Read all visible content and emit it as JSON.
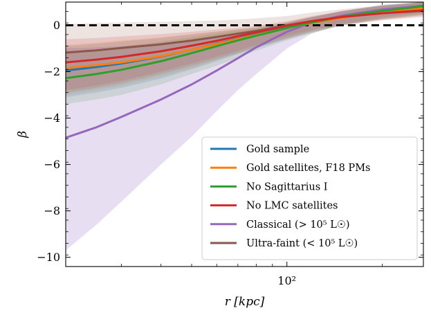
{
  "chart_data": {
    "type": "line",
    "xlabel": "r [kpc]",
    "ylabel": "β",
    "x_scale": "log",
    "xlim": [
      20,
      270
    ],
    "ylim": [
      -10.4,
      1.0
    ],
    "x_major_ticks": [
      {
        "value": 100,
        "label": "10²"
      }
    ],
    "x_minor_ticks": [
      20,
      30,
      40,
      50,
      60,
      70,
      80,
      90,
      200
    ],
    "y_ticks": [
      0,
      -2,
      -4,
      -6,
      -8,
      -10
    ],
    "y_tick_labels": [
      "0",
      "−2",
      "−4",
      "−6",
      "−8",
      "−10"
    ],
    "y_minor_step": 0.5,
    "reference_line": {
      "y": 0,
      "style": "dashed",
      "color": "#000000"
    },
    "legend_position": "lower-right",
    "x": [
      20,
      25,
      30,
      40,
      50,
      60,
      70,
      80,
      100,
      120,
      150,
      200,
      270
    ],
    "series": [
      {
        "name": "Gold sample",
        "color": "#1f77b4",
        "values": [
          -1.95,
          -1.8,
          -1.65,
          -1.35,
          -1.05,
          -0.8,
          -0.58,
          -0.4,
          -0.1,
          0.12,
          0.35,
          0.58,
          0.78
        ],
        "lower": [
          -3.1,
          -2.9,
          -2.7,
          -2.3,
          -1.9,
          -1.55,
          -1.25,
          -1.0,
          -0.6,
          -0.3,
          0.0,
          0.25,
          0.45
        ],
        "upper": [
          -0.9,
          -0.8,
          -0.7,
          -0.55,
          -0.4,
          -0.28,
          -0.18,
          -0.1,
          0.12,
          0.35,
          0.6,
          0.85,
          1.0
        ]
      },
      {
        "name": "Gold satellites, F18 PMs",
        "color": "#ff7f0e",
        "values": [
          -1.85,
          -1.72,
          -1.6,
          -1.33,
          -1.05,
          -0.82,
          -0.6,
          -0.42,
          -0.12,
          0.1,
          0.33,
          0.56,
          0.75
        ],
        "lower": [
          -3.0,
          -2.8,
          -2.6,
          -2.2,
          -1.85,
          -1.5,
          -1.2,
          -0.95,
          -0.58,
          -0.3,
          0.0,
          0.25,
          0.45
        ],
        "upper": [
          -0.85,
          -0.75,
          -0.65,
          -0.52,
          -0.38,
          -0.26,
          -0.16,
          -0.08,
          0.14,
          0.36,
          0.6,
          0.85,
          1.0
        ]
      },
      {
        "name": "No Sagittarius I",
        "color": "#2ca02c",
        "values": [
          -2.28,
          -2.1,
          -1.92,
          -1.55,
          -1.2,
          -0.9,
          -0.65,
          -0.45,
          -0.12,
          0.12,
          0.38,
          0.62,
          0.82
        ],
        "lower": [
          -3.4,
          -3.2,
          -3.0,
          -2.55,
          -2.1,
          -1.75,
          -1.4,
          -1.1,
          -0.65,
          -0.35,
          0.0,
          0.3,
          0.5
        ],
        "upper": [
          -1.2,
          -1.05,
          -0.92,
          -0.7,
          -0.52,
          -0.35,
          -0.22,
          -0.12,
          0.1,
          0.35,
          0.62,
          0.88,
          1.0
        ]
      },
      {
        "name": "No LMC satellites",
        "color": "#d62728",
        "values": [
          -1.6,
          -1.48,
          -1.36,
          -1.12,
          -0.88,
          -0.67,
          -0.47,
          -0.3,
          -0.02,
          0.18,
          0.36,
          0.52,
          0.65
        ],
        "lower": [
          -2.8,
          -2.6,
          -2.4,
          -2.0,
          -1.65,
          -1.35,
          -1.1,
          -0.85,
          -0.45,
          -0.2,
          0.05,
          0.25,
          0.4
        ],
        "upper": [
          -0.6,
          -0.55,
          -0.48,
          -0.38,
          -0.28,
          -0.18,
          -0.1,
          -0.02,
          0.18,
          0.4,
          0.62,
          0.82,
          1.0
        ]
      },
      {
        "name": "Classical (> 10⁵ L☉)",
        "color": "#9467bd",
        "values": [
          -4.85,
          -4.4,
          -3.95,
          -3.2,
          -2.55,
          -1.95,
          -1.42,
          -0.95,
          -0.28,
          0.12,
          0.42,
          0.68,
          0.85
        ],
        "lower": [
          -9.7,
          -8.6,
          -7.6,
          -6.0,
          -4.8,
          -3.7,
          -2.8,
          -2.1,
          -1.0,
          -0.35,
          0.05,
          0.35,
          0.55
        ],
        "upper": [
          -1.0,
          -0.95,
          -0.9,
          -0.8,
          -0.65,
          -0.48,
          -0.32,
          -0.2,
          0.08,
          0.35,
          0.62,
          0.88,
          1.0
        ]
      },
      {
        "name": "Ultra-faint (< 10⁵ L☉)",
        "color": "#8c564b",
        "values": [
          -1.18,
          -1.08,
          -0.98,
          -0.82,
          -0.66,
          -0.5,
          -0.36,
          -0.24,
          0.0,
          0.18,
          0.36,
          0.52,
          0.62
        ],
        "lower": [
          -2.9,
          -2.7,
          -2.5,
          -2.1,
          -1.75,
          -1.45,
          -1.2,
          -0.95,
          -0.55,
          -0.25,
          0.0,
          0.2,
          0.35
        ],
        "upper": [
          0.05,
          0.1,
          0.12,
          0.15,
          0.18,
          0.2,
          0.25,
          0.3,
          0.4,
          0.55,
          0.7,
          0.85,
          1.0
        ]
      }
    ]
  }
}
